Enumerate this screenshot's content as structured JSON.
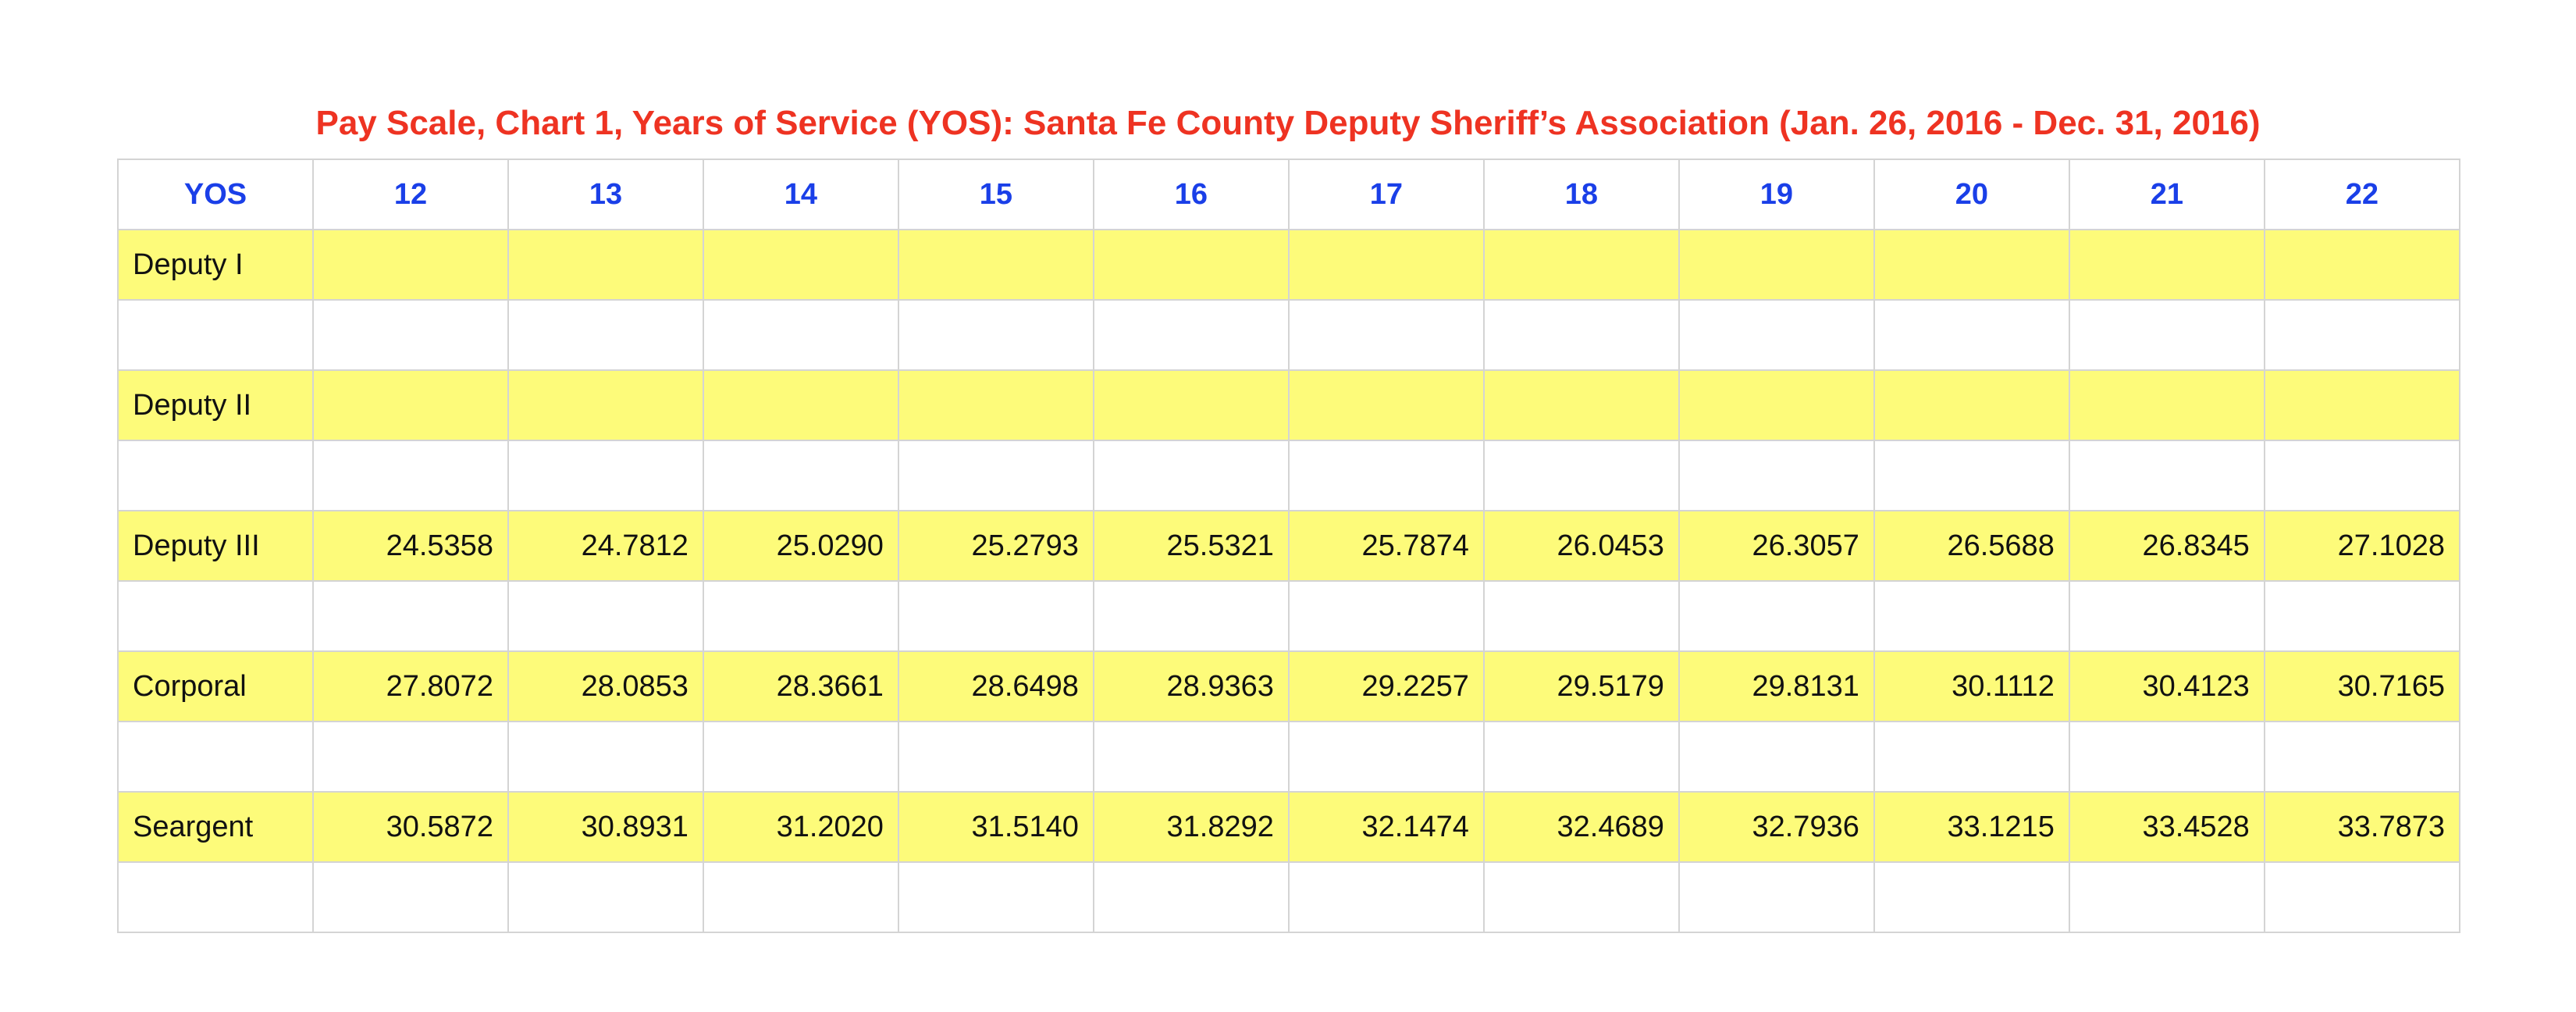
{
  "chart_data": {
    "type": "table",
    "title": "Pay Scale, Chart 1, Years of Service (YOS): Santa Fe County Deputy Sheriff’s Association (Jan. 26, 2016 - Dec. 31, 2016)",
    "row_header_label": "YOS",
    "columns": [
      "12",
      "13",
      "14",
      "15",
      "16",
      "17",
      "18",
      "19",
      "20",
      "21",
      "22"
    ],
    "rows": [
      {
        "label": "Deputy I",
        "values": [
          "",
          "",
          "",
          "",
          "",
          "",
          "",
          "",
          "",
          "",
          ""
        ]
      },
      {
        "label": "Deputy II",
        "values": [
          "",
          "",
          "",
          "",
          "",
          "",
          "",
          "",
          "",
          "",
          ""
        ]
      },
      {
        "label": "Deputy III",
        "values": [
          "24.5358",
          "24.7812",
          "25.0290",
          "25.2793",
          "25.5321",
          "25.7874",
          "26.0453",
          "26.3057",
          "26.5688",
          "26.8345",
          "27.1028"
        ]
      },
      {
        "label": "Corporal",
        "values": [
          "27.8072",
          "28.0853",
          "28.3661",
          "28.6498",
          "28.9363",
          "29.2257",
          "29.5179",
          "29.8131",
          "30.1112",
          "30.4123",
          "30.7165"
        ]
      },
      {
        "label": "Seargent",
        "values": [
          "30.5872",
          "30.8931",
          "31.2020",
          "31.5140",
          "31.8292",
          "32.1474",
          "32.4689",
          "32.7936",
          "33.1215",
          "33.4528",
          "33.7873"
        ]
      }
    ],
    "colors": {
      "title": "#ee3322",
      "header_text": "#1a3fe8",
      "rank_row_fill": "#fdfb7a",
      "blank_row_fill": "#ffffff",
      "grid": "#d4d4d4"
    }
  }
}
